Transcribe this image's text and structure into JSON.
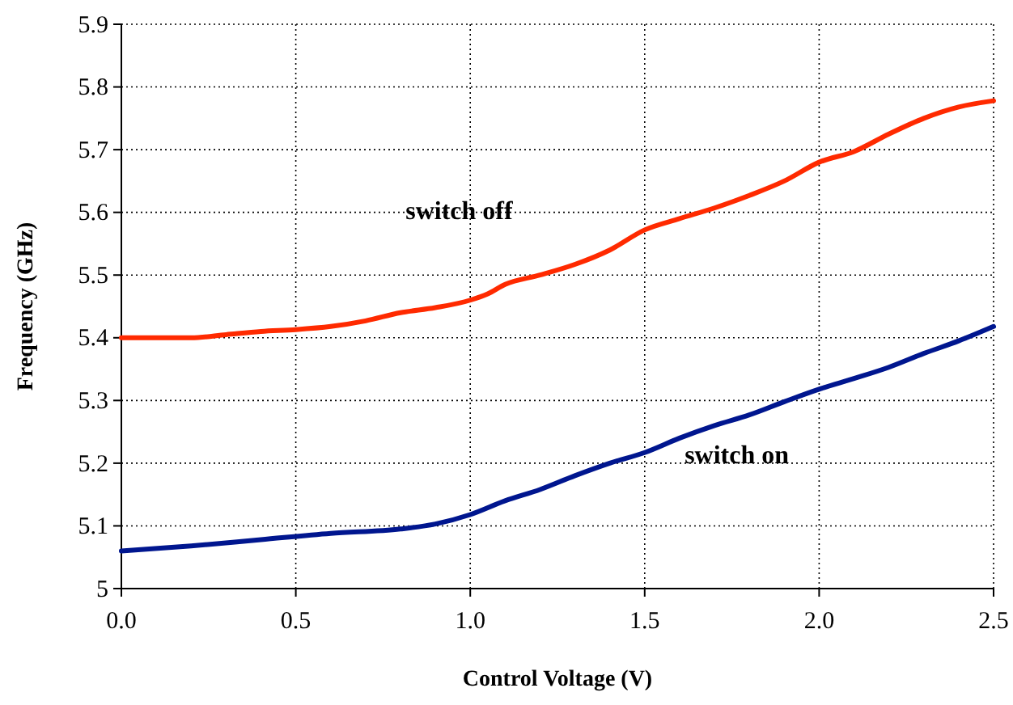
{
  "chart_data": {
    "type": "line",
    "xlabel": "Control Voltage (V)",
    "ylabel": "Frequency (GHz)",
    "xlim": [
      0,
      2.5
    ],
    "xticks": [
      {
        "value": 0,
        "label": "0.0"
      },
      {
        "value": 0.5,
        "label": "0.5"
      },
      {
        "value": 1,
        "label": "1.0"
      },
      {
        "value": 1.5,
        "label": "1.5"
      },
      {
        "value": 2,
        "label": "2.0"
      },
      {
        "value": 2.5,
        "label": "2.5"
      }
    ],
    "ylim": [
      5,
      5.9
    ],
    "yticks": [
      {
        "value": 5,
        "label": "5"
      },
      5.1,
      5.2,
      5.3,
      5.4,
      5.5,
      5.6,
      5.7,
      5.8,
      5.9
    ],
    "grid": true,
    "legend": false,
    "marker": "none",
    "line_style": "solid",
    "series": [
      {
        "name": "switch off",
        "color": "#ff2a00",
        "x": [
          0,
          0.2,
          0.3,
          0.4,
          0.5,
          0.6,
          0.7,
          0.8,
          0.9,
          1.0,
          1.05,
          1.1,
          1.2,
          1.3,
          1.4,
          1.5,
          1.6,
          1.7,
          1.8,
          1.9,
          2.0,
          2.1,
          2.2,
          2.3,
          2.4,
          2.5
        ],
        "values": [
          5.4,
          5.4,
          5.405,
          5.41,
          5.413,
          5.418,
          5.427,
          5.44,
          5.448,
          5.46,
          5.47,
          5.485,
          5.5,
          5.517,
          5.54,
          5.572,
          5.59,
          5.607,
          5.627,
          5.65,
          5.68,
          5.697,
          5.725,
          5.75,
          5.768,
          5.778
        ]
      },
      {
        "name": "switch on",
        "color": "#00168f",
        "x": [
          0,
          0.2,
          0.4,
          0.6,
          0.8,
          0.9,
          1.0,
          1.1,
          1.2,
          1.3,
          1.4,
          1.5,
          1.6,
          1.7,
          1.8,
          1.9,
          2.0,
          2.1,
          2.2,
          2.3,
          2.4,
          2.5
        ],
        "values": [
          5.06,
          5.068,
          5.078,
          5.088,
          5.095,
          5.103,
          5.118,
          5.14,
          5.158,
          5.18,
          5.2,
          5.217,
          5.24,
          5.26,
          5.277,
          5.298,
          5.318,
          5.335,
          5.353,
          5.375,
          5.395,
          5.418
        ]
      }
    ]
  }
}
